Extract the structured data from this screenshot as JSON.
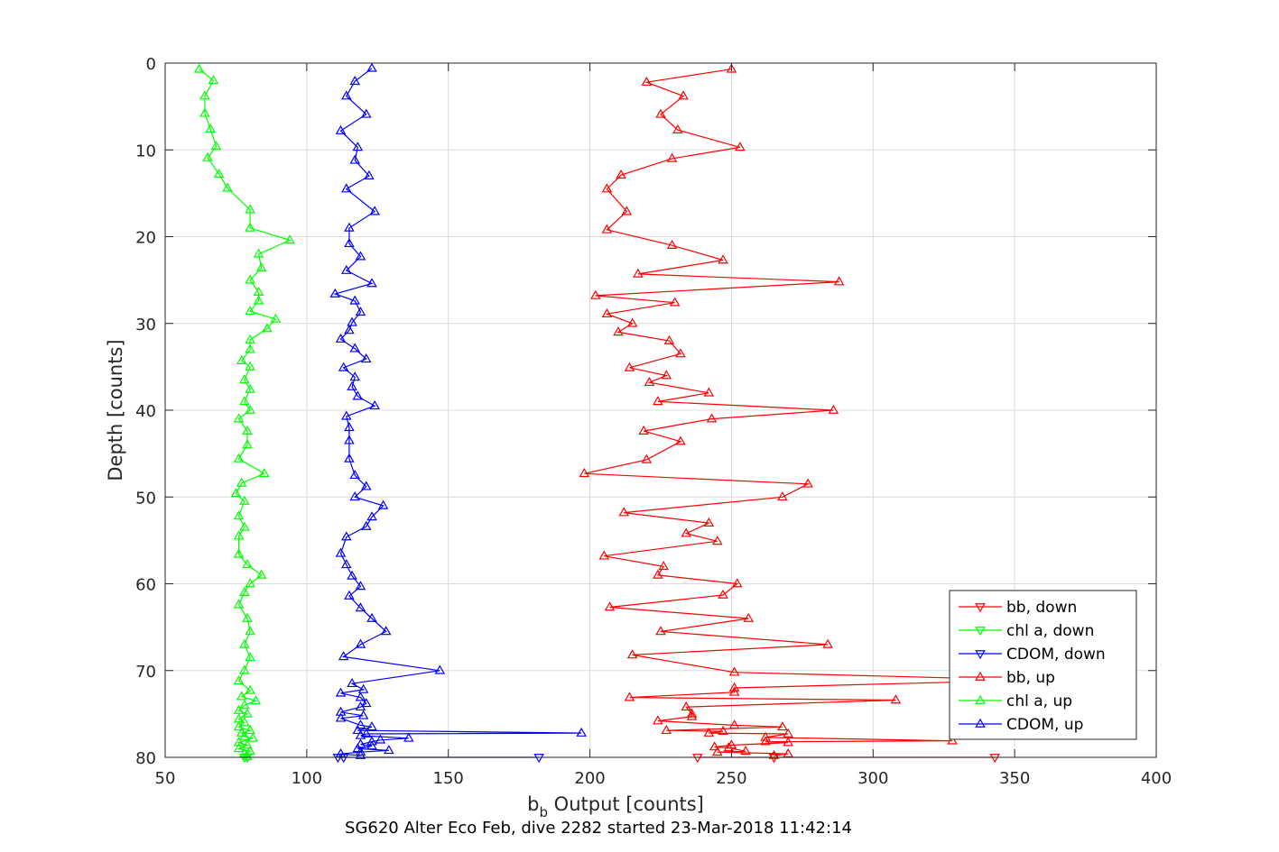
{
  "chart_data": {
    "type": "line",
    "title": "SG620 Alter Eco Feb, dive 2282 started 23-Mar-2018 11:42:14",
    "xlabel_main": "b",
    "xlabel_sub": "b",
    "xlabel_rest": " Output [counts]",
    "ylabel": "Depth [counts]",
    "xlim": [
      50,
      400
    ],
    "ylim": [
      0,
      80
    ],
    "y_reversed": true,
    "grid": true,
    "legend_position": "lower-right",
    "xticks": [
      "50",
      "100",
      "150",
      "200",
      "250",
      "300",
      "350",
      "400"
    ],
    "yticks": [
      "0",
      "10",
      "20",
      "30",
      "40",
      "50",
      "60",
      "70",
      "80"
    ],
    "series": [
      {
        "name": "bb, down",
        "color": "#ff0000",
        "marker": "triangle-down",
        "points": [
          [
            343,
            80.0
          ],
          [
            265,
            80.0
          ],
          [
            238,
            80.0
          ]
        ]
      },
      {
        "name": "chl a, down",
        "color": "#00ff00",
        "marker": "triangle-down",
        "points": [
          [
            79,
            80.0
          ],
          [
            78,
            80.0
          ]
        ]
      },
      {
        "name": "CDOM, down",
        "color": "#0000ff",
        "marker": "triangle-down",
        "points": [
          [
            182,
            80.0
          ],
          [
            111,
            80.0
          ],
          [
            113,
            80.0
          ]
        ]
      },
      {
        "name": "bb, up",
        "color": "#ff0000",
        "marker": "triangle-up",
        "points": [
          [
            250,
            0.7
          ],
          [
            220,
            2.2
          ],
          [
            233,
            3.8
          ],
          [
            225,
            5.9
          ],
          [
            231,
            7.7
          ],
          [
            253,
            9.7
          ],
          [
            229,
            11.0
          ],
          [
            211,
            12.9
          ],
          [
            206,
            14.5
          ],
          [
            213,
            17.1
          ],
          [
            206,
            19.2
          ],
          [
            229,
            21.0
          ],
          [
            247,
            22.7
          ],
          [
            217,
            24.3
          ],
          [
            288,
            25.2
          ],
          [
            202,
            26.8
          ],
          [
            230,
            27.6
          ],
          [
            206,
            28.9
          ],
          [
            215,
            30.0
          ],
          [
            210,
            31.0
          ],
          [
            228,
            32.0
          ],
          [
            232,
            33.5
          ],
          [
            214,
            35.1
          ],
          [
            227,
            36.0
          ],
          [
            221,
            36.8
          ],
          [
            242,
            38.0
          ],
          [
            224,
            39.0
          ],
          [
            286,
            40.0
          ],
          [
            243,
            41.0
          ],
          [
            219,
            42.4
          ],
          [
            232,
            43.6
          ],
          [
            220,
            45.7
          ],
          [
            198,
            47.3
          ],
          [
            277,
            48.5
          ],
          [
            268,
            50.0
          ],
          [
            212,
            51.8
          ],
          [
            242,
            53.0
          ],
          [
            234,
            54.2
          ],
          [
            245,
            55.1
          ],
          [
            205,
            56.8
          ],
          [
            226,
            58.0
          ],
          [
            224,
            59.0
          ],
          [
            252,
            60.0
          ],
          [
            247,
            61.3
          ],
          [
            207,
            62.7
          ],
          [
            256,
            64.0
          ],
          [
            225,
            65.5
          ],
          [
            284,
            67.0
          ],
          [
            215,
            68.2
          ],
          [
            251,
            70.2
          ],
          [
            357,
            71.1
          ],
          [
            251,
            72.0
          ],
          [
            251,
            72.5
          ],
          [
            214,
            73.1
          ],
          [
            308,
            73.4
          ],
          [
            234,
            74.2
          ],
          [
            236,
            75.0
          ],
          [
            236,
            75.3
          ],
          [
            224,
            75.8
          ],
          [
            251,
            76.3
          ],
          [
            268,
            76.5
          ],
          [
            227,
            76.9
          ],
          [
            247,
            77.0
          ],
          [
            242,
            77.2
          ],
          [
            270,
            77.3
          ],
          [
            262,
            77.7
          ],
          [
            328,
            78.1
          ],
          [
            262,
            78.2
          ],
          [
            270,
            78.3
          ],
          [
            250,
            78.6
          ],
          [
            244,
            78.8
          ],
          [
            249,
            78.9
          ],
          [
            255,
            79.3
          ],
          [
            245,
            79.4
          ],
          [
            270,
            79.6
          ],
          [
            265,
            79.8
          ]
        ]
      },
      {
        "name": "chl a, up",
        "color": "#00ff00",
        "marker": "triangle-up",
        "points": [
          [
            62,
            0.7
          ],
          [
            67,
            2.0
          ],
          [
            64,
            3.8
          ],
          [
            64,
            5.8
          ],
          [
            66,
            7.6
          ],
          [
            68,
            9.6
          ],
          [
            65,
            10.9
          ],
          [
            69,
            12.8
          ],
          [
            72,
            14.4
          ],
          [
            80,
            16.9
          ],
          [
            80,
            19.0
          ],
          [
            94,
            20.4
          ],
          [
            83,
            22.0
          ],
          [
            84,
            23.6
          ],
          [
            80,
            25.0
          ],
          [
            83,
            26.4
          ],
          [
            83,
            27.4
          ],
          [
            80,
            28.6
          ],
          [
            89,
            29.5
          ],
          [
            86,
            30.6
          ],
          [
            80,
            31.9
          ],
          [
            80,
            33.0
          ],
          [
            77,
            34.3
          ],
          [
            80,
            35.0
          ],
          [
            78,
            36.5
          ],
          [
            80,
            37.6
          ],
          [
            78,
            39.0
          ],
          [
            80,
            40.0
          ],
          [
            76,
            41.0
          ],
          [
            79,
            42.4
          ],
          [
            79,
            44.0
          ],
          [
            76,
            45.6
          ],
          [
            85,
            47.3
          ],
          [
            77,
            48.4
          ],
          [
            75,
            49.6
          ],
          [
            78,
            50.5
          ],
          [
            76,
            52.2
          ],
          [
            78,
            53.5
          ],
          [
            76,
            54.5
          ],
          [
            76,
            56.6
          ],
          [
            79,
            57.8
          ],
          [
            84,
            59.0
          ],
          [
            80,
            60.0
          ],
          [
            78,
            61.0
          ],
          [
            76,
            62.4
          ],
          [
            79,
            64.0
          ],
          [
            80,
            65.5
          ],
          [
            78,
            67.0
          ],
          [
            80,
            68.5
          ],
          [
            78,
            70.0
          ],
          [
            76,
            71.2
          ],
          [
            80,
            72.3
          ],
          [
            77,
            73.0
          ],
          [
            82,
            73.5
          ],
          [
            78,
            74.0
          ],
          [
            76,
            74.6
          ],
          [
            79,
            75.0
          ],
          [
            76,
            75.6
          ],
          [
            78,
            76.0
          ],
          [
            76,
            76.5
          ],
          [
            80,
            76.9
          ],
          [
            77,
            77.2
          ],
          [
            78,
            77.6
          ],
          [
            81,
            77.8
          ],
          [
            76,
            78.3
          ],
          [
            79,
            78.6
          ],
          [
            76,
            79.0
          ],
          [
            80,
            79.3
          ],
          [
            78,
            79.6
          ],
          [
            79,
            79.9
          ]
        ]
      },
      {
        "name": "CDOM, up",
        "color": "#0000ff",
        "marker": "triangle-up",
        "points": [
          [
            123,
            0.6
          ],
          [
            117,
            2.1
          ],
          [
            114,
            3.8
          ],
          [
            121,
            5.9
          ],
          [
            112,
            7.8
          ],
          [
            118,
            9.7
          ],
          [
            117,
            11.2
          ],
          [
            122,
            13.0
          ],
          [
            114,
            14.5
          ],
          [
            124,
            17.1
          ],
          [
            115,
            19.0
          ],
          [
            115,
            20.8
          ],
          [
            119,
            22.3
          ],
          [
            114,
            23.9
          ],
          [
            123,
            25.4
          ],
          [
            110,
            26.6
          ],
          [
            117,
            27.4
          ],
          [
            119,
            28.7
          ],
          [
            116,
            29.9
          ],
          [
            115,
            30.8
          ],
          [
            112,
            31.8
          ],
          [
            117,
            32.9
          ],
          [
            121,
            34.1
          ],
          [
            113,
            35.1
          ],
          [
            117,
            36.2
          ],
          [
            116,
            37.3
          ],
          [
            118,
            38.4
          ],
          [
            124,
            39.5
          ],
          [
            114,
            40.7
          ],
          [
            115,
            42.0
          ],
          [
            115,
            43.5
          ],
          [
            115,
            45.6
          ],
          [
            117,
            47.5
          ],
          [
            121,
            48.8
          ],
          [
            117,
            50.0
          ],
          [
            127,
            51.0
          ],
          [
            123,
            52.3
          ],
          [
            121,
            53.4
          ],
          [
            114,
            54.6
          ],
          [
            112,
            56.5
          ],
          [
            114,
            57.8
          ],
          [
            116,
            59.1
          ],
          [
            119,
            60.3
          ],
          [
            115,
            61.4
          ],
          [
            119,
            62.8
          ],
          [
            123,
            64.0
          ],
          [
            128,
            65.5
          ],
          [
            119,
            67.0
          ],
          [
            113,
            68.4
          ],
          [
            147,
            70.0
          ],
          [
            116,
            71.5
          ],
          [
            120,
            72.2
          ],
          [
            112,
            72.6
          ],
          [
            119,
            73.1
          ],
          [
            121,
            73.8
          ],
          [
            119,
            74.2
          ],
          [
            112,
            74.8
          ],
          [
            120,
            75.2
          ],
          [
            112,
            75.5
          ],
          [
            119,
            76.3
          ],
          [
            123,
            76.5
          ],
          [
            118,
            76.9
          ],
          [
            197,
            77.2
          ],
          [
            121,
            77.3
          ],
          [
            119,
            77.5
          ],
          [
            136,
            77.8
          ],
          [
            126,
            78.0
          ],
          [
            123,
            78.2
          ],
          [
            119,
            78.5
          ],
          [
            123,
            78.7
          ],
          [
            118,
            79.0
          ],
          [
            129,
            79.2
          ],
          [
            119,
            79.4
          ],
          [
            112,
            79.6
          ],
          [
            119,
            79.8
          ]
        ]
      }
    ]
  },
  "legend": {
    "items": [
      "bb, down",
      "chl a, down",
      "CDOM, down",
      "bb, up",
      "chl a, up",
      "CDOM, up"
    ]
  }
}
